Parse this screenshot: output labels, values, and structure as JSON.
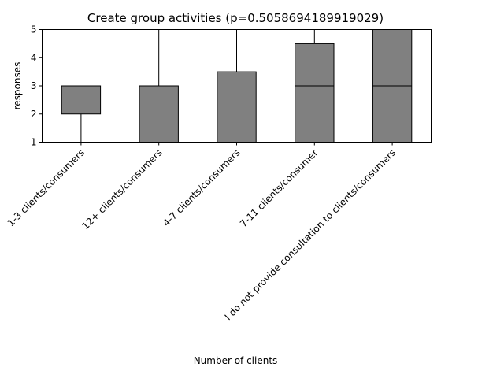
{
  "chart_data": {
    "type": "box",
    "title": "Create group activities (p=0.5058694189919029)",
    "xlabel": "Number of clients",
    "ylabel": "responses",
    "ylim": [
      1,
      5
    ],
    "yticks": [
      1,
      2,
      3,
      4,
      5
    ],
    "grid": false,
    "box_color": "#808080",
    "categories": [
      "1-3 clients/consumers",
      "12+ clients/consumers",
      "4-7 clients/consumers",
      "7-11 clients/consumer",
      "I do not provide consultation to clients/consumers"
    ],
    "boxes": [
      {
        "whisker_low": 1,
        "q1": 2,
        "median": 3,
        "q3": 3,
        "whisker_high": 3
      },
      {
        "whisker_low": 1,
        "q1": 1,
        "median": 1,
        "q3": 3,
        "whisker_high": 5
      },
      {
        "whisker_low": 1,
        "q1": 1,
        "median": 1,
        "q3": 3.5,
        "whisker_high": 5
      },
      {
        "whisker_low": 1,
        "q1": 1,
        "median": 3,
        "q3": 4.5,
        "whisker_high": 5
      },
      {
        "whisker_low": 1,
        "q1": 1,
        "median": 3,
        "q3": 5,
        "whisker_high": 5
      }
    ]
  }
}
